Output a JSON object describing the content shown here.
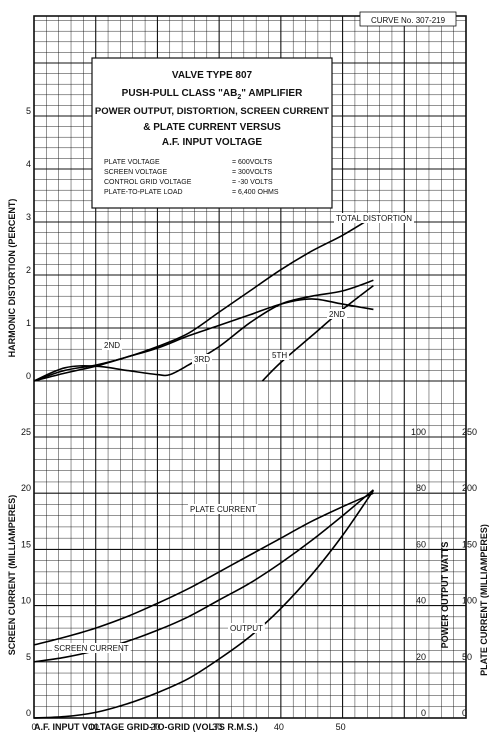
{
  "curve_number": "CURVE No. 307-219",
  "title_block": {
    "lines": [
      "VALVE TYPE 807",
      "PUSH-PULL CLASS \"AB",
      "POWER OUTPUT, DISTORTION, SCREEN CURRENT",
      "& PLATE CURRENT VERSUS",
      "A.F. INPUT VOLTAGE"
    ],
    "class_subscript": "2",
    "class_suffix": "\" AMPLIFIER",
    "conditions": [
      {
        "label": "PLATE VOLTAGE",
        "value": "= 600VOLTS"
      },
      {
        "label": "SCREEN VOLTAGE",
        "value": "= 300VOLTS"
      },
      {
        "label": "CONTROL GRID VOLTAGE",
        "value": "= -30 VOLTS"
      },
      {
        "label": "PLATE-TO-PLATE LOAD",
        "value": "= 6,400 OHMS"
      }
    ]
  },
  "chart_data": [
    {
      "type": "line",
      "ylabel": "HARMONIC DISTORTION (PERCENT)",
      "xlabel": "A.F. INPUT VOLTAGE GRID-TO-GRID (VOLTS R.M.S.)",
      "xlim": [
        0,
        70
      ],
      "ylim": [
        0,
        5
      ],
      "xticks": [
        "0",
        "10",
        "20",
        "30",
        "40",
        "50"
      ],
      "yticks": [
        "0",
        "1",
        "2",
        "3",
        "4",
        "5"
      ],
      "series": [
        {
          "name": "TOTAL DISTORTION",
          "x": [
            0,
            5,
            10,
            15,
            20,
            25,
            30,
            35,
            40,
            45,
            50,
            55
          ],
          "y": [
            0.0,
            0.2,
            0.3,
            0.45,
            0.65,
            0.9,
            1.3,
            1.7,
            2.1,
            2.45,
            2.75,
            3.1
          ]
        },
        {
          "name": "2ND",
          "x": [
            0,
            5,
            10,
            15,
            20,
            25,
            30,
            35,
            40,
            45,
            50,
            55
          ],
          "y": [
            0.0,
            0.15,
            0.28,
            0.45,
            0.62,
            0.85,
            1.05,
            1.25,
            1.45,
            1.55,
            1.45,
            1.35
          ]
        },
        {
          "name": "3RD",
          "x": [
            0,
            5,
            10,
            15,
            20,
            22,
            25,
            30,
            35,
            40,
            45,
            50,
            55
          ],
          "y": [
            0.0,
            0.25,
            0.28,
            0.2,
            0.12,
            0.12,
            0.3,
            0.65,
            1.1,
            1.45,
            1.6,
            1.7,
            1.9
          ]
        },
        {
          "name": "5TH",
          "x": [
            37,
            40,
            45,
            50,
            55
          ],
          "y": [
            0.0,
            0.35,
            0.85,
            1.35,
            1.8
          ]
        }
      ]
    },
    {
      "type": "line",
      "ylabel": "SCREEN CURRENT (MILLIAMPERES)",
      "xlabel": "A.F. INPUT VOLTAGE GRID-TO-GRID (VOLTS R.M.S.)",
      "xlim": [
        0,
        70
      ],
      "ylim": [
        0,
        25
      ],
      "xticks": [
        "0",
        "10",
        "20",
        "30",
        "40",
        "50"
      ],
      "yticks": [
        "0",
        "5",
        "10",
        "15",
        "20",
        "25"
      ],
      "right_axes": [
        {
          "label": "POWER OUTPUT  WATTS",
          "ticks": [
            "0",
            "20",
            "40",
            "60",
            "80",
            "100"
          ],
          "lim": [
            0,
            100
          ]
        },
        {
          "label": "PLATE CURRENT (MILLIAMPERES)",
          "ticks": [
            "0",
            "50",
            "100",
            "150",
            "200",
            "250"
          ],
          "lim": [
            0,
            250
          ]
        }
      ],
      "series": [
        {
          "name": "PLATE CURRENT",
          "axis": "PLATE CURRENT (MILLIAMPERES)",
          "x": [
            0,
            5,
            10,
            15,
            20,
            25,
            30,
            35,
            40,
            45,
            50,
            55
          ],
          "y": [
            65,
            72,
            80,
            90,
            102,
            115,
            130,
            145,
            160,
            175,
            188,
            200
          ]
        },
        {
          "name": "SCREEN CURRENT",
          "axis": "SCREEN CURRENT (MILLIAMPERES)",
          "x": [
            0,
            5,
            10,
            15,
            20,
            25,
            30,
            35,
            40,
            45,
            50,
            55
          ],
          "y": [
            5.0,
            5.4,
            6.0,
            6.8,
            7.8,
            9.0,
            10.5,
            12.0,
            13.8,
            15.8,
            18.0,
            20.3
          ]
        },
        {
          "name": "OUTPUT",
          "axis": "POWER OUTPUT  WATTS",
          "x": [
            0,
            5,
            10,
            15,
            20,
            25,
            30,
            35,
            40,
            45,
            50,
            55
          ],
          "y": [
            0,
            0.5,
            2,
            5,
            9,
            14,
            21,
            29,
            39,
            51,
            65,
            81
          ]
        }
      ]
    }
  ]
}
